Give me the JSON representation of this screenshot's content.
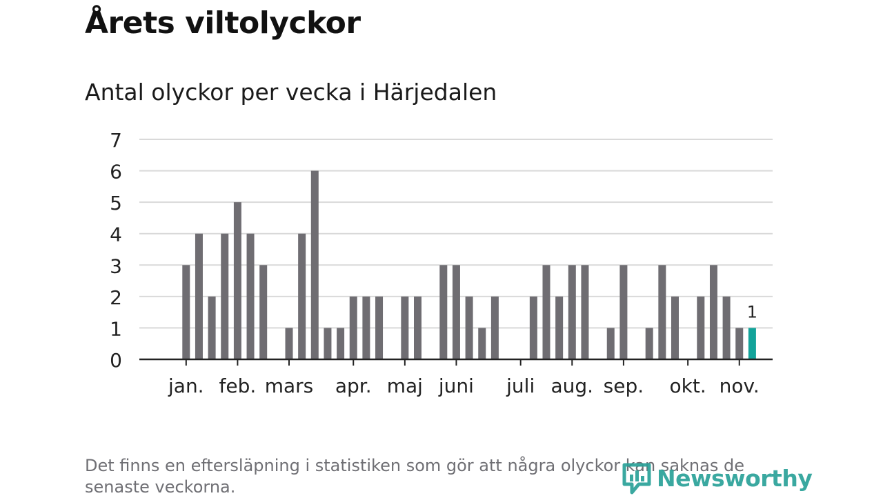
{
  "title": "Årets viltolyckor",
  "subtitle": "Antal olyckor per vecka i Härjedalen",
  "footnote": "Det finns en eftersläpning i statistiken som gör att några olyckor kan saknas de senaste veckorna.",
  "logo_text": "Newsworthy",
  "colors": {
    "bar": "#6f6d72",
    "highlight": "#13a39a",
    "grid": "#d9d9d9",
    "axis": "#222222",
    "logo": "#2aa198"
  },
  "chart_data": {
    "type": "bar",
    "title": "Antal olyckor per vecka i Härjedalen",
    "xlabel": "",
    "ylabel": "",
    "ylim": [
      0,
      7
    ],
    "yticks": [
      0,
      1,
      2,
      3,
      4,
      5,
      6,
      7
    ],
    "grid": true,
    "week_count": 48,
    "weeks": [
      1,
      2,
      3,
      4,
      5,
      6,
      7,
      8,
      9,
      10,
      11,
      12,
      13,
      14,
      15,
      16,
      17,
      18,
      19,
      20,
      21,
      22,
      23,
      24,
      25,
      26,
      27,
      28,
      29,
      30,
      31,
      32,
      33,
      34,
      35,
      36,
      37,
      38,
      39,
      40,
      41,
      42,
      43,
      44,
      45,
      46,
      47,
      48
    ],
    "values": [
      0,
      0,
      3,
      4,
      2,
      4,
      5,
      4,
      3,
      0,
      1,
      4,
      6,
      1,
      1,
      2,
      2,
      2,
      0,
      2,
      2,
      0,
      3,
      3,
      2,
      1,
      2,
      0,
      0,
      2,
      3,
      2,
      3,
      3,
      0,
      1,
      3,
      0,
      1,
      3,
      2,
      0,
      2,
      3,
      2,
      1,
      1,
      0
    ],
    "highlight_week": 47,
    "highlight_label": "1",
    "month_labels": [
      {
        "label": "jan.",
        "week": 3
      },
      {
        "label": "feb.",
        "week": 7
      },
      {
        "label": "mars",
        "week": 11
      },
      {
        "label": "apr.",
        "week": 16
      },
      {
        "label": "maj",
        "week": 20
      },
      {
        "label": "juni",
        "week": 24
      },
      {
        "label": "juli",
        "week": 29
      },
      {
        "label": "aug.",
        "week": 33
      },
      {
        "label": "sep.",
        "week": 37
      },
      {
        "label": "okt.",
        "week": 42
      },
      {
        "label": "nov.",
        "week": 46
      }
    ]
  }
}
